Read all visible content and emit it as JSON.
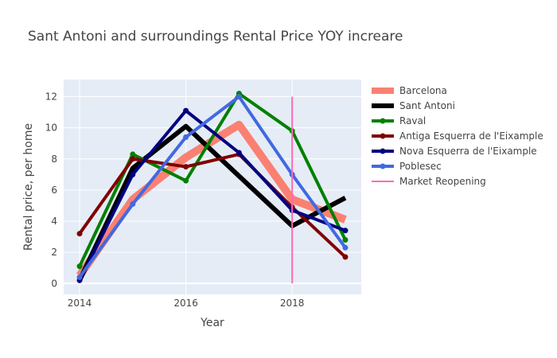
{
  "chart_data": {
    "type": "line",
    "title": "Sant Antoni and surroundings Rental Price YOY increare",
    "xlabel": "Year",
    "ylabel": "Rental price, per home",
    "xlim": [
      2013.7,
      2019.3
    ],
    "ylim": [
      -0.7,
      13.1
    ],
    "xticks": [
      2014,
      2016,
      2018
    ],
    "yticks": [
      0,
      2,
      4,
      6,
      8,
      10,
      12
    ],
    "grid": true,
    "legend_position": "right",
    "x": [
      2014,
      2015,
      2016,
      2017,
      2018,
      2019
    ],
    "series": [
      {
        "name": "Barcelona",
        "color": "#FA8072",
        "markers": false,
        "values": [
          0.5,
          5.4,
          8.1,
          10.2,
          5.4,
          4.1
        ]
      },
      {
        "name": "Sant Antoni",
        "color": "#000000",
        "markers": false,
        "values": [
          0.2,
          7.4,
          10.1,
          6.9,
          3.7,
          5.5
        ]
      },
      {
        "name": "Raval",
        "color": "#008000",
        "markers": true,
        "values": [
          1.1,
          8.3,
          6.6,
          12.2,
          9.8,
          2.8
        ]
      },
      {
        "name": "Antiga Esquerra de l'Eixample",
        "color": "#800000",
        "markers": true,
        "values": [
          3.2,
          8.0,
          7.5,
          8.3,
          4.9,
          1.7
        ]
      },
      {
        "name": "Nova Esquerra de l'Eixample",
        "color": "#000080",
        "markers": true,
        "values": [
          0.2,
          7.0,
          11.1,
          8.4,
          4.7,
          3.4
        ]
      },
      {
        "name": "Poblesec",
        "color": "#4169E1",
        "markers": true,
        "values": [
          0.4,
          5.1,
          9.4,
          12.0,
          7.0,
          2.3
        ]
      }
    ],
    "annotation_line": {
      "name": "Market Reopening",
      "color": "#FF69B4",
      "x": 2018,
      "y_from": 0,
      "y_to": 12
    }
  }
}
